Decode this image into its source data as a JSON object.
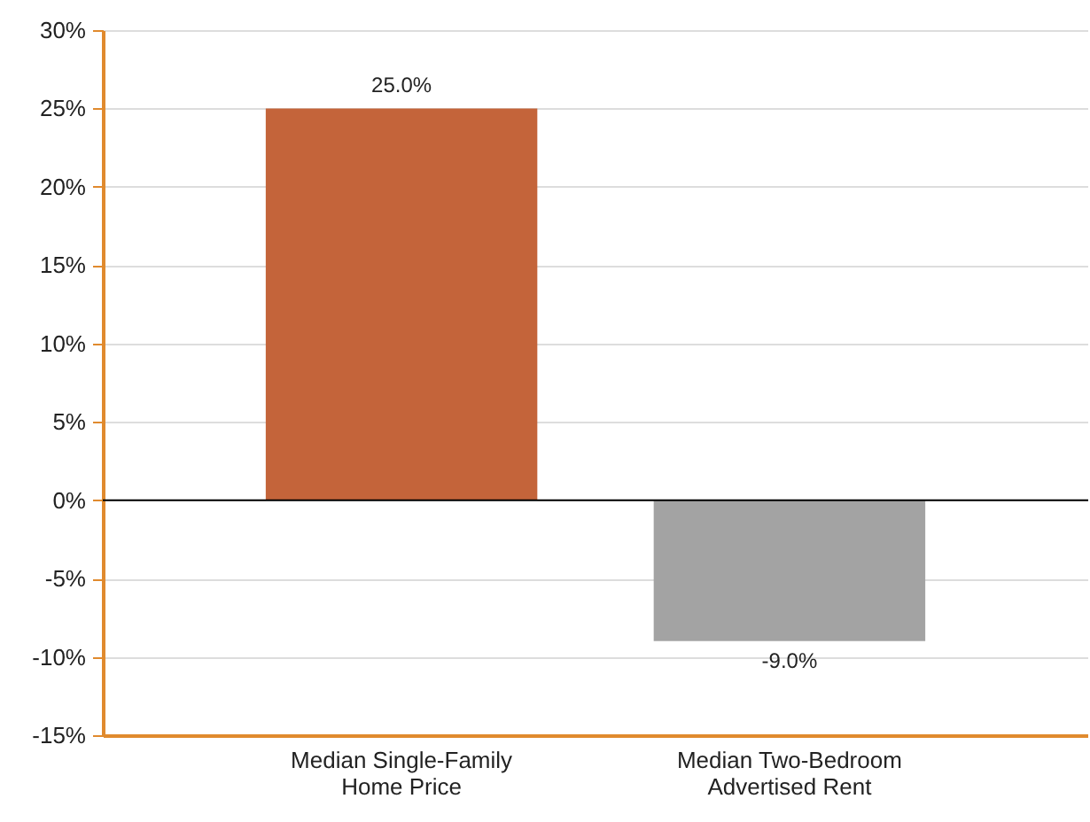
{
  "chart_data": {
    "type": "bar",
    "categories": [
      "Median Single-Family Home Price",
      "Median Two-Bedroom Advertised Rent"
    ],
    "values": [
      25.0,
      -9.0
    ],
    "colors": [
      "#c4643a",
      "#a3a3a3"
    ],
    "value_labels": [
      "25.0%",
      "-9.0%"
    ],
    "ylim": [
      -15,
      30
    ],
    "yticks": [
      {
        "value": -15,
        "label": "-15%"
      },
      {
        "value": -10,
        "label": "-10%"
      },
      {
        "value": -5,
        "label": "-5%"
      },
      {
        "value": 0,
        "label": "0%"
      },
      {
        "value": 5,
        "label": "5%"
      },
      {
        "value": 10,
        "label": "10%"
      },
      {
        "value": 15,
        "label": "15%"
      },
      {
        "value": 20,
        "label": "20%"
      },
      {
        "value": 25,
        "label": "25%"
      },
      {
        "value": 30,
        "label": "30%"
      }
    ],
    "grid": "y"
  }
}
